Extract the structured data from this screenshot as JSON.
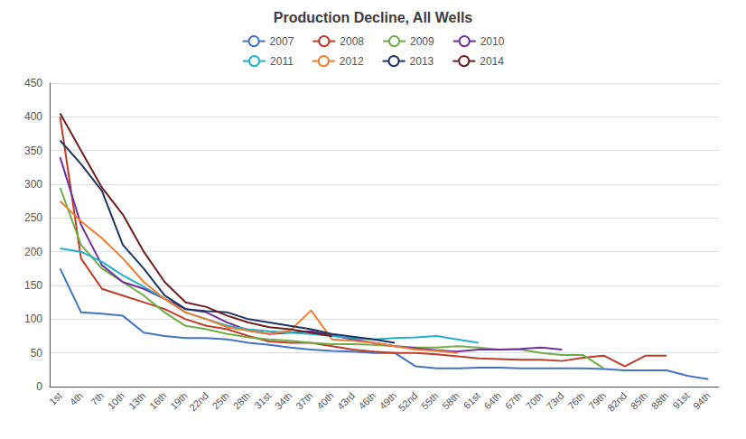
{
  "chart_data": {
    "type": "line",
    "title": "Production Decline, All Wells",
    "categories": [
      "1st",
      "4th",
      "7th",
      "10th",
      "13th",
      "16th",
      "19th",
      "22nd",
      "25th",
      "28th",
      "31st",
      "34th",
      "37th",
      "40th",
      "43rd",
      "46th",
      "49th",
      "52nd",
      "55th",
      "58th",
      "61st",
      "64th",
      "67th",
      "70th",
      "73rd",
      "76th",
      "79th",
      "82nd",
      "85th",
      "88th",
      "91st",
      "94th"
    ],
    "series": [
      {
        "name": "2007",
        "color": "#4472c4",
        "values": [
          175,
          110,
          108,
          105,
          80,
          75,
          72,
          72,
          70,
          65,
          62,
          58,
          55,
          53,
          52,
          50,
          50,
          30,
          27,
          27,
          28,
          28,
          27,
          27,
          27,
          27,
          26,
          24,
          24,
          24,
          16,
          11
        ]
      },
      {
        "name": "2008",
        "color": "#be3c28",
        "values": [
          400,
          190,
          145,
          135,
          125,
          115,
          100,
          90,
          85,
          75,
          67,
          65,
          65,
          60,
          55,
          52,
          50,
          50,
          48,
          45,
          42,
          41,
          40,
          40,
          38,
          43,
          46,
          30,
          46,
          46,
          null,
          null
        ]
      },
      {
        "name": "2009",
        "color": "#70ad47",
        "values": [
          295,
          210,
          175,
          155,
          135,
          110,
          90,
          85,
          78,
          73,
          70,
          68,
          65,
          63,
          63,
          62,
          60,
          58,
          58,
          60,
          58,
          55,
          55,
          50,
          47,
          47,
          27,
          null,
          null,
          null,
          null,
          null
        ]
      },
      {
        "name": "2010",
        "color": "#7030a0",
        "values": [
          340,
          240,
          180,
          155,
          145,
          130,
          115,
          110,
          95,
          83,
          78,
          80,
          82,
          76,
          70,
          65,
          60,
          57,
          54,
          52,
          55,
          55,
          56,
          58,
          55,
          null,
          null,
          null,
          null,
          null,
          null,
          null
        ]
      },
      {
        "name": "2011",
        "color": "#23b0c8",
        "values": [
          205,
          200,
          185,
          165,
          148,
          130,
          110,
          100,
          90,
          85,
          82,
          80,
          78,
          75,
          72,
          70,
          72,
          73,
          75,
          70,
          65,
          null,
          null,
          null,
          null,
          null,
          null,
          null,
          null,
          null,
          null,
          null
        ]
      },
      {
        "name": "2012",
        "color": "#ed7d31",
        "values": [
          275,
          245,
          220,
          190,
          155,
          130,
          110,
          100,
          88,
          83,
          78,
          83,
          113,
          70,
          68,
          65,
          60,
          55,
          53,
          50,
          null,
          null,
          null,
          null,
          null,
          null,
          null,
          null,
          null,
          null,
          null,
          null
        ]
      },
      {
        "name": "2013",
        "color": "#1e3461",
        "values": [
          365,
          330,
          290,
          210,
          175,
          135,
          115,
          112,
          110,
          100,
          95,
          90,
          85,
          78,
          74,
          70,
          65,
          null,
          null,
          null,
          null,
          null,
          null,
          null,
          null,
          null,
          null,
          null,
          null,
          null,
          null,
          null
        ]
      },
      {
        "name": "2014",
        "color": "#6b1f1f",
        "values": [
          405,
          350,
          295,
          255,
          200,
          155,
          125,
          118,
          105,
          95,
          88,
          85,
          80,
          75,
          null,
          null,
          null,
          null,
          null,
          null,
          null,
          null,
          null,
          null,
          null,
          null,
          null,
          null,
          null,
          null,
          null,
          null
        ]
      }
    ],
    "ylim": [
      0,
      450
    ],
    "yticks": [
      0,
      50,
      100,
      150,
      200,
      250,
      300,
      350,
      400,
      450
    ],
    "grid": true,
    "legend": "top"
  }
}
